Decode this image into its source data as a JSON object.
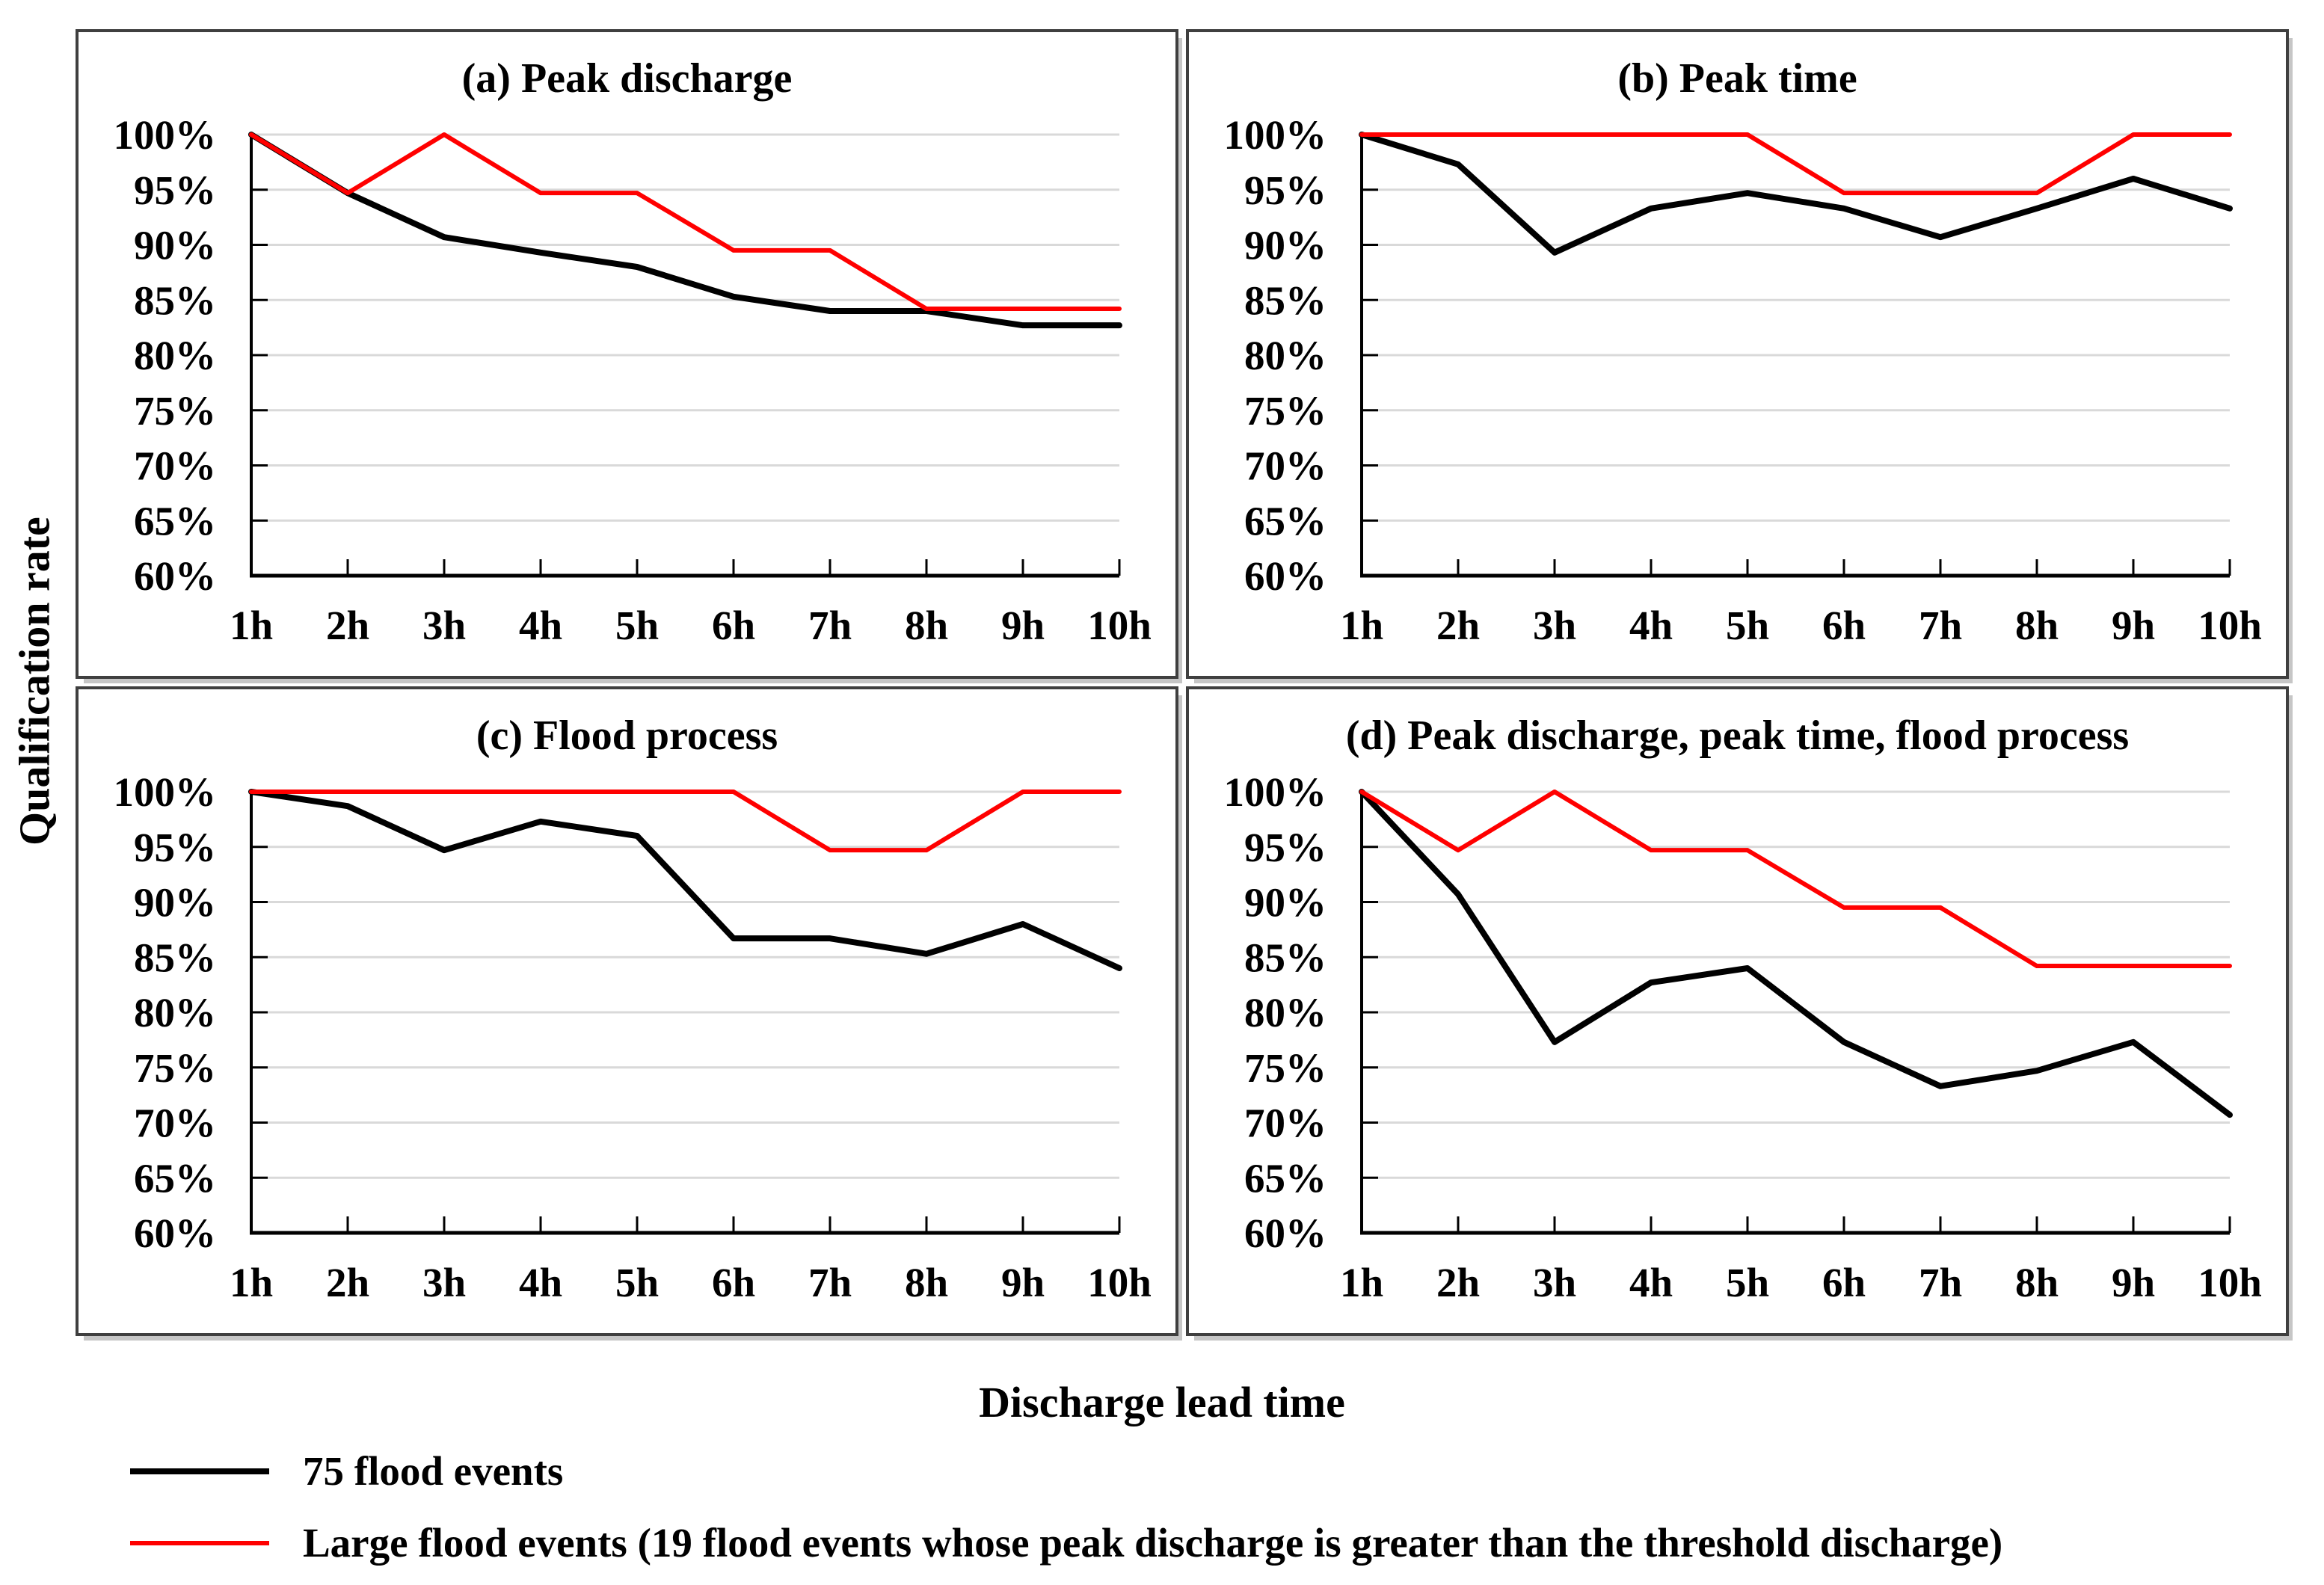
{
  "figure": {
    "y_axis_title": "Qualification rate",
    "x_axis_title": "Discharge lead time",
    "background": "#ffffff"
  },
  "style": {
    "series_black": "#000000",
    "series_red": "#ff0000",
    "gridline_color": "#d9d9d9",
    "axis_color": "#000000",
    "panel_border_color": "#3f3f3f",
    "shadow_color": "#c6c6c6"
  },
  "axis": {
    "ylim": [
      60,
      100
    ],
    "y_ticks": [
      {
        "label": "100%",
        "value": 100
      },
      {
        "label": "95%",
        "value": 95
      },
      {
        "label": "90%",
        "value": 90
      },
      {
        "label": "85%",
        "value": 85
      },
      {
        "label": "80%",
        "value": 80
      },
      {
        "label": "75%",
        "value": 75
      },
      {
        "label": "70%",
        "value": 70
      },
      {
        "label": "65%",
        "value": 65
      },
      {
        "label": "60%",
        "value": 60
      }
    ],
    "x_ticks": [
      "1h",
      "2h",
      "3h",
      "4h",
      "5h",
      "6h",
      "7h",
      "8h",
      "9h",
      "10h"
    ]
  },
  "legend": [
    {
      "label": "75 flood events",
      "color": "#000000",
      "thickness": 8
    },
    {
      "label": "Large flood events (19 flood events whose peak discharge is greater than the threshold discharge)",
      "color": "#ff0000",
      "thickness": 6
    }
  ],
  "chart_data": [
    {
      "type": "line",
      "title": "(a) Peak discharge",
      "categories": [
        "1h",
        "2h",
        "3h",
        "4h",
        "5h",
        "6h",
        "7h",
        "8h",
        "9h",
        "10h"
      ],
      "ylim": [
        60,
        100
      ],
      "grid": true,
      "series": [
        {
          "name": "75 flood events",
          "color": "#000000",
          "values": [
            100,
            94.7,
            90.7,
            89.3,
            88.0,
            85.3,
            84.0,
            84.0,
            82.7,
            82.7
          ]
        },
        {
          "name": "Large flood events",
          "color": "#ff0000",
          "values": [
            100,
            94.7,
            100,
            94.7,
            94.7,
            89.5,
            89.5,
            84.2,
            84.2,
            84.2
          ]
        }
      ]
    },
    {
      "type": "line",
      "title": "(b) Peak time",
      "categories": [
        "1h",
        "2h",
        "3h",
        "4h",
        "5h",
        "6h",
        "7h",
        "8h",
        "9h",
        "10h"
      ],
      "ylim": [
        60,
        100
      ],
      "grid": true,
      "series": [
        {
          "name": "75 flood events",
          "color": "#000000",
          "values": [
            100,
            97.3,
            89.3,
            93.3,
            94.7,
            93.3,
            90.7,
            93.3,
            96.0,
            93.3
          ]
        },
        {
          "name": "Large flood events",
          "color": "#ff0000",
          "values": [
            100,
            100,
            100,
            100,
            100,
            94.7,
            94.7,
            94.7,
            100,
            100
          ]
        }
      ]
    },
    {
      "type": "line",
      "title": "(c) Flood process",
      "categories": [
        "1h",
        "2h",
        "3h",
        "4h",
        "5h",
        "6h",
        "7h",
        "8h",
        "9h",
        "10h"
      ],
      "ylim": [
        60,
        100
      ],
      "grid": true,
      "series": [
        {
          "name": "75 flood events",
          "color": "#000000",
          "values": [
            100,
            98.7,
            94.7,
            97.3,
            96.0,
            86.7,
            86.7,
            85.3,
            88.0,
            84.0
          ]
        },
        {
          "name": "Large flood events",
          "color": "#ff0000",
          "values": [
            100,
            100,
            100,
            100,
            100,
            100,
            94.7,
            94.7,
            100,
            100
          ]
        }
      ]
    },
    {
      "type": "line",
      "title": "(d) Peak discharge, peak time, flood process",
      "categories": [
        "1h",
        "2h",
        "3h",
        "4h",
        "5h",
        "6h",
        "7h",
        "8h",
        "9h",
        "10h"
      ],
      "ylim": [
        60,
        100
      ],
      "grid": true,
      "series": [
        {
          "name": "75 flood events",
          "color": "#000000",
          "values": [
            100,
            90.7,
            77.3,
            82.7,
            84.0,
            77.3,
            73.3,
            74.7,
            77.3,
            70.7
          ]
        },
        {
          "name": "Large flood events",
          "color": "#ff0000",
          "values": [
            100,
            94.7,
            100,
            94.7,
            94.7,
            89.5,
            89.5,
            84.2,
            84.2,
            84.2
          ]
        }
      ]
    }
  ]
}
